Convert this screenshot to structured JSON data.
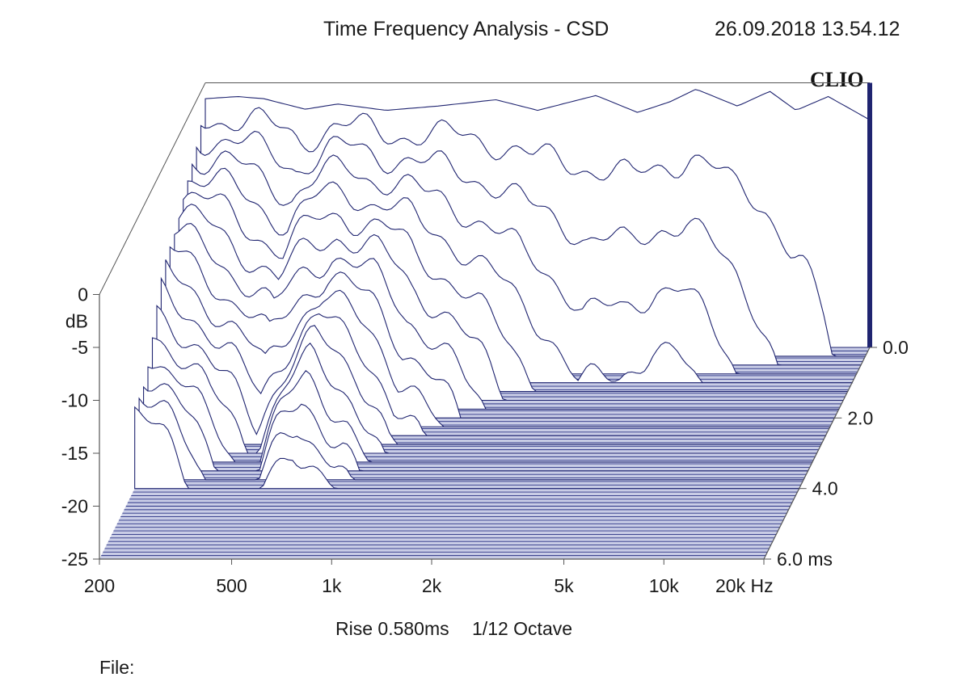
{
  "header": {
    "title": "Time Frequency Analysis - CSD",
    "timestamp": "26.09.2018 13.54.12",
    "brand": "CLIO"
  },
  "footer": {
    "rise": "Rise 0.580ms",
    "resolution": "1/12 Octave",
    "file_label": "File:"
  },
  "colors": {
    "trace": "#1f2470",
    "floor": "#2a3284",
    "axis": "#555555"
  },
  "chart_data": {
    "type": "csd_waterfall",
    "title": "Time Frequency Analysis - CSD",
    "x_axis": {
      "label": "Hz",
      "scale": "log",
      "range": [
        200,
        20000
      ],
      "ticks": [
        {
          "value": 200,
          "label": "200"
        },
        {
          "value": 500,
          "label": "500"
        },
        {
          "value": 1000,
          "label": "1k"
        },
        {
          "value": 2000,
          "label": "2k"
        },
        {
          "value": 5000,
          "label": "5k"
        },
        {
          "value": 10000,
          "label": "10k"
        },
        {
          "value": 20000,
          "label": "20k Hz"
        }
      ]
    },
    "y_axis": {
      "label": "dB",
      "range": [
        -25,
        0
      ],
      "ticks": [
        {
          "value": 0,
          "label": "0"
        },
        {
          "value": -5,
          "label": "-5"
        },
        {
          "value": -10,
          "label": "-10"
        },
        {
          "value": -15,
          "label": "-15"
        },
        {
          "value": -20,
          "label": "-20"
        },
        {
          "value": -25,
          "label": "-25"
        }
      ]
    },
    "z_axis": {
      "label": "ms",
      "range": [
        0,
        6
      ],
      "ticks": [
        {
          "value": 0,
          "label": "0.0"
        },
        {
          "value": 2,
          "label": "2.0"
        },
        {
          "value": 4,
          "label": "4.0"
        },
        {
          "value": 6,
          "label": "6.0  ms"
        }
      ]
    },
    "slice_times_ms": [
      0.0,
      0.25,
      0.5,
      0.75,
      1.0,
      1.25,
      1.5,
      1.75,
      2.0,
      2.25,
      2.5,
      2.75,
      3.0,
      3.25,
      3.5,
      3.75,
      4.0
    ],
    "initial_response": {
      "freqs_hz": [
        200,
        250,
        300,
        400,
        500,
        700,
        1000,
        1500,
        2000,
        3000,
        4000,
        5000,
        6000,
        8000,
        10000,
        12000,
        15000,
        20000
      ],
      "levels_db": [
        -1.5,
        -1.3,
        -1.5,
        -2.5,
        -2.0,
        -2.6,
        -2.2,
        -1.6,
        -2.6,
        -1.2,
        -2.8,
        -1.8,
        -0.6,
        -2.2,
        -0.8,
        -2.6,
        -1.3,
        -3.5
      ]
    },
    "decay_ms_by_freq": {
      "freqs_hz": [
        200,
        300,
        400,
        600,
        800,
        1000,
        1500,
        2000,
        3000,
        5000,
        8000,
        10000,
        15000,
        20000
      ],
      "decay_ms": [
        6.0,
        4.0,
        3.2,
        5.2,
        4.2,
        3.0,
        2.0,
        1.6,
        1.0,
        1.2,
        0.9,
        0.6,
        0.3,
        0.1
      ]
    }
  }
}
